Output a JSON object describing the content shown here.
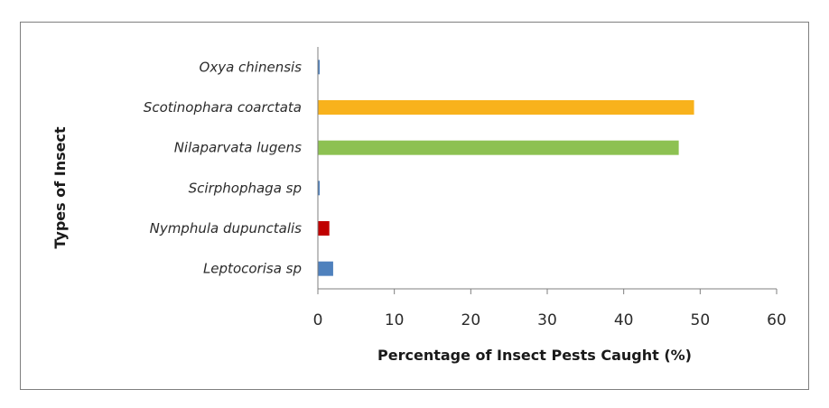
{
  "chart_data": {
    "type": "bar",
    "orientation": "horizontal",
    "categories": [
      "Oxya chinensis",
      "Scotinophara coarctata",
      "Nilaparvata lugens",
      "Scirphophaga sp",
      "Nymphula dupunctalis",
      "Leptocorisa sp"
    ],
    "values": [
      0.2,
      49.2,
      47.2,
      0.2,
      1.5,
      2.0
    ],
    "bar_colors": [
      "#4f81bd",
      "#f8b21c",
      "#8dc152",
      "#4f81bd",
      "#c00000",
      "#4f81bd"
    ],
    "xlabel": "Percentage of Insect Pests Caught (%)",
    "ylabel": "Types of Insect",
    "xlim": [
      0,
      60
    ],
    "xticks": [
      0,
      10,
      20,
      30,
      40,
      50,
      60
    ],
    "grid": false,
    "legend": "none"
  }
}
